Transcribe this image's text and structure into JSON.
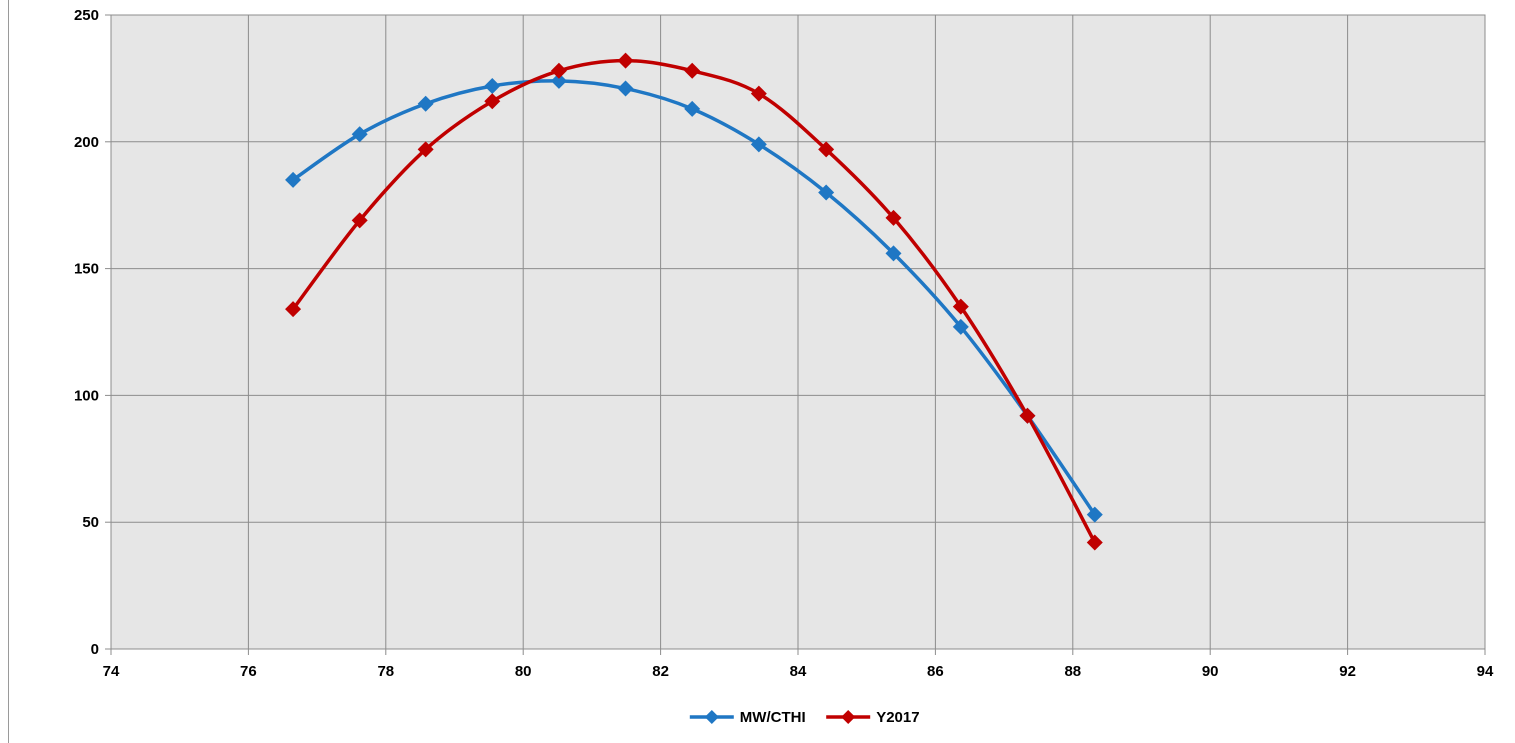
{
  "chart_data": {
    "type": "line",
    "title": "",
    "xlabel": "",
    "ylabel": "",
    "xlim": [
      74,
      94
    ],
    "ylim": [
      0,
      250
    ],
    "x_ticks": [
      "74",
      "76",
      "78",
      "80",
      "82",
      "84",
      "86",
      "88",
      "90",
      "92",
      "94"
    ],
    "y_ticks": [
      "0",
      "50",
      "100",
      "150",
      "200",
      "250"
    ],
    "grid": true,
    "plot_background": "#e6e6e6",
    "legend_position": "bottom-center",
    "smooth": true,
    "marker": "diamond",
    "series": [
      {
        "name": "MW/CTHI",
        "color": "#1f77c4",
        "x": [
          76.65,
          77.62,
          78.58,
          79.55,
          80.52,
          81.49,
          82.46,
          83.43,
          84.41,
          85.39,
          86.37,
          87.34,
          88.32
        ],
        "y": [
          185,
          203,
          215,
          222,
          224,
          221,
          213,
          199,
          180,
          156,
          127,
          92,
          53
        ]
      },
      {
        "name": "Y2017",
        "color": "#c00000",
        "x": [
          76.65,
          77.62,
          78.58,
          79.55,
          80.52,
          81.49,
          82.46,
          83.43,
          84.41,
          85.39,
          86.37,
          87.34,
          88.32
        ],
        "y": [
          134,
          169,
          197,
          216,
          228,
          232,
          228,
          219,
          197,
          170,
          135,
          92,
          42
        ]
      }
    ]
  }
}
